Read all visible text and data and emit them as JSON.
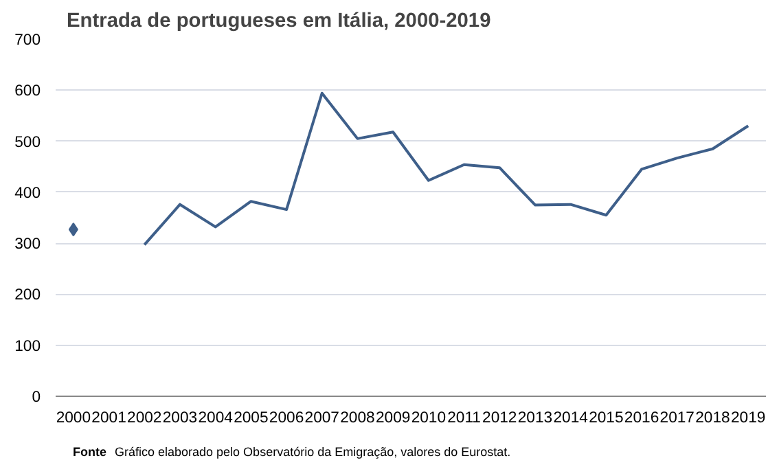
{
  "chart_data": {
    "type": "line",
    "title": "Entrada de portugueses  em Itália, 2000-2019",
    "categories": [
      "2000",
      "2001",
      "2002",
      "2003",
      "2004",
      "2005",
      "2006",
      "2007",
      "2008",
      "2009",
      "2010",
      "2011",
      "2012",
      "2013",
      "2014",
      "2015",
      "2016",
      "2017",
      "2018",
      "2019"
    ],
    "series": [
      {
        "color": "#3e5f8a",
        "values": [
          327,
          null,
          297,
          376,
          332,
          382,
          366,
          594,
          505,
          518,
          423,
          454,
          448,
          375,
          376,
          355,
          445,
          467,
          485,
          530
        ]
      }
    ],
    "ylim": [
      0,
      700
    ],
    "yticks": [
      0,
      100,
      200,
      300,
      400,
      500,
      600,
      700
    ],
    "grid": "y",
    "annotations": [
      "Fonte",
      "Gráfico elaborado pelo Observatório da Emigração, valores do Eurostat."
    ]
  }
}
